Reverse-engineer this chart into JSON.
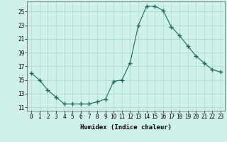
{
  "x": [
    0,
    1,
    2,
    3,
    4,
    5,
    6,
    7,
    8,
    9,
    10,
    11,
    12,
    13,
    14,
    15,
    16,
    17,
    18,
    19,
    20,
    21,
    22,
    23
  ],
  "y": [
    16.0,
    15.0,
    13.5,
    12.5,
    11.5,
    11.5,
    11.5,
    11.5,
    11.8,
    12.2,
    14.8,
    15.0,
    17.5,
    23.0,
    25.8,
    25.8,
    25.2,
    22.8,
    21.5,
    20.0,
    18.5,
    17.5,
    16.5,
    16.2
  ],
  "line_color": "#1a6b5a",
  "marker": "+",
  "marker_size": 4,
  "bg_color": "#cff0eb",
  "grid_color": "#a8d8d0",
  "xlabel": "Humidex (Indice chaleur)",
  "xlim": [
    -0.5,
    23.5
  ],
  "ylim": [
    10.5,
    26.5
  ],
  "yticks": [
    11,
    13,
    15,
    17,
    19,
    21,
    23,
    25
  ],
  "xticks": [
    0,
    1,
    2,
    3,
    4,
    5,
    6,
    7,
    8,
    9,
    10,
    11,
    12,
    13,
    14,
    15,
    16,
    17,
    18,
    19,
    20,
    21,
    22,
    23
  ],
  "tick_fontsize": 5.5,
  "label_fontsize": 6.5
}
